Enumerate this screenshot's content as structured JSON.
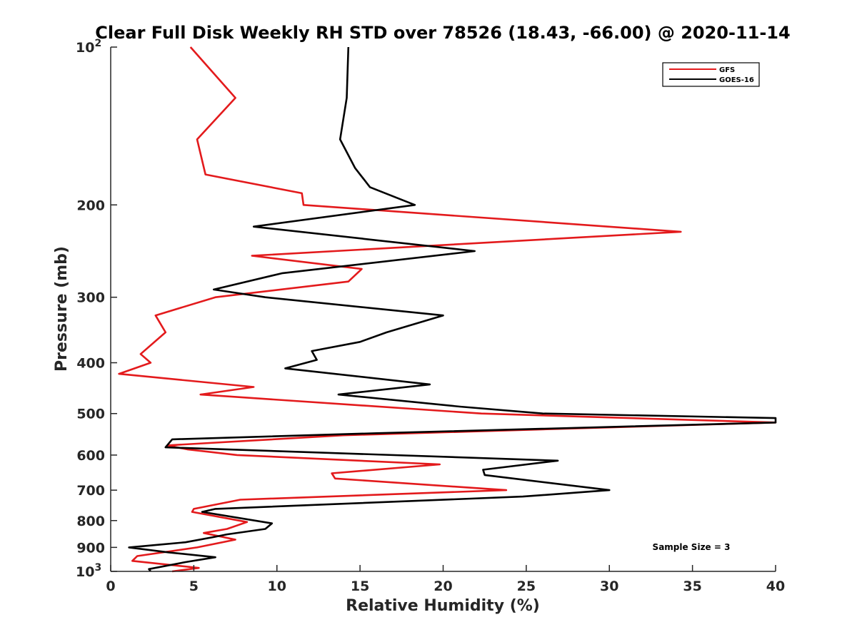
{
  "chart_data": {
    "type": "line",
    "title": "Clear Full Disk Weekly RH STD over 78526 (18.43, -66.00) @ 2020-11-14",
    "xlabel": "Relative Humidity (%)",
    "ylabel": "Pressure (mb)",
    "xlim": [
      0,
      40
    ],
    "ylim": [
      100,
      1000
    ],
    "yscale": "log",
    "y_reversed": true,
    "grid": false,
    "legend_position": "top-right",
    "xticks": [
      0,
      5,
      10,
      15,
      20,
      25,
      30,
      35,
      40
    ],
    "xtick_labels": [
      "0",
      "5",
      "10",
      "15",
      "20",
      "25",
      "30",
      "35",
      "40"
    ],
    "yticks": [
      100,
      200,
      300,
      400,
      500,
      600,
      700,
      800,
      900,
      1000
    ],
    "ytick_labels": [
      {
        "base": "10",
        "exp": "2"
      },
      {
        "base": "200",
        "exp": ""
      },
      {
        "base": "300",
        "exp": ""
      },
      {
        "base": "400",
        "exp": ""
      },
      {
        "base": "500",
        "exp": ""
      },
      {
        "base": "600",
        "exp": ""
      },
      {
        "base": "700",
        "exp": ""
      },
      {
        "base": "800",
        "exp": ""
      },
      {
        "base": "900",
        "exp": ""
      },
      {
        "base": "10",
        "exp": "3"
      }
    ],
    "annotation": "Sample Size = 3",
    "series": [
      {
        "name": "GFS",
        "color": "#e31a1c",
        "points": [
          [
            4.8,
            100
          ],
          [
            7.5,
            125
          ],
          [
            5.2,
            150
          ],
          [
            5.7,
            175
          ],
          [
            11.5,
            190
          ],
          [
            11.6,
            200
          ],
          [
            34.3,
            225
          ],
          [
            8.5,
            250
          ],
          [
            15.1,
            265
          ],
          [
            14.3,
            280
          ],
          [
            6.3,
            300
          ],
          [
            2.7,
            325
          ],
          [
            3.3,
            350
          ],
          [
            1.8,
            385
          ],
          [
            2.4,
            400
          ],
          [
            0.5,
            420
          ],
          [
            8.6,
            445
          ],
          [
            5.4,
            460
          ],
          [
            22.3,
            500
          ],
          [
            40.0,
            520
          ],
          [
            14.0,
            550
          ],
          [
            3.4,
            575
          ],
          [
            4.6,
            585
          ],
          [
            7.6,
            600
          ],
          [
            19.8,
            625
          ],
          [
            13.3,
            650
          ],
          [
            13.5,
            665
          ],
          [
            23.8,
            700
          ],
          [
            7.8,
            730
          ],
          [
            5.0,
            760
          ],
          [
            4.9,
            770
          ],
          [
            8.2,
            805
          ],
          [
            7.0,
            830
          ],
          [
            5.6,
            845
          ],
          [
            7.5,
            870
          ],
          [
            5.2,
            900
          ],
          [
            1.6,
            935
          ],
          [
            1.3,
            955
          ],
          [
            5.3,
            985
          ],
          [
            3.7,
            1000
          ]
        ]
      },
      {
        "name": "GOES-16",
        "color": "#000000",
        "points": [
          [
            14.3,
            100
          ],
          [
            14.2,
            125
          ],
          [
            13.8,
            150
          ],
          [
            14.7,
            170
          ],
          [
            15.6,
            185
          ],
          [
            18.3,
            200
          ],
          [
            8.6,
            220
          ],
          [
            21.9,
            245
          ],
          [
            10.3,
            270
          ],
          [
            6.2,
            290
          ],
          [
            9.3,
            300
          ],
          [
            20.0,
            325
          ],
          [
            16.6,
            350
          ],
          [
            15.0,
            365
          ],
          [
            12.1,
            380
          ],
          [
            12.4,
            395
          ],
          [
            10.5,
            410
          ],
          [
            19.2,
            440
          ],
          [
            13.7,
            460
          ],
          [
            21.0,
            485
          ],
          [
            26.0,
            500
          ],
          [
            40.0,
            510
          ],
          [
            40.0,
            520
          ],
          [
            16.0,
            545
          ],
          [
            3.7,
            560
          ],
          [
            3.3,
            580
          ],
          [
            26.9,
            615
          ],
          [
            22.4,
            640
          ],
          [
            22.5,
            655
          ],
          [
            30.0,
            700
          ],
          [
            24.8,
            720
          ],
          [
            6.3,
            760
          ],
          [
            5.5,
            770
          ],
          [
            9.7,
            810
          ],
          [
            9.3,
            830
          ],
          [
            7.0,
            850
          ],
          [
            6.2,
            860
          ],
          [
            4.5,
            880
          ],
          [
            1.1,
            900
          ],
          [
            3.5,
            920
          ],
          [
            6.3,
            940
          ],
          [
            4.5,
            960
          ],
          [
            2.3,
            990
          ],
          [
            2.4,
            1000
          ]
        ]
      }
    ]
  }
}
